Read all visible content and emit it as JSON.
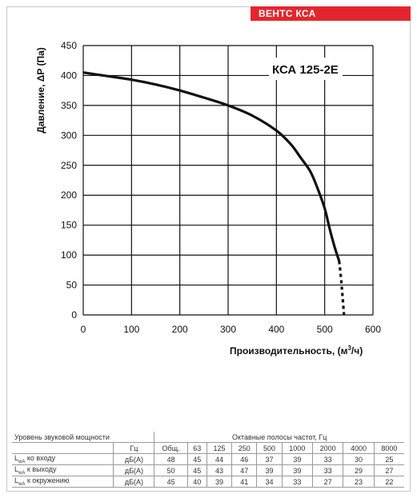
{
  "brand": "ВЕНТС КСА",
  "chart_data": {
    "type": "line",
    "title": "КСА 125-2Е",
    "xlabel": "Производительность, (м³/ч)",
    "ylabel": "Давление, ΔP (Па)",
    "xlim": [
      0,
      600
    ],
    "ylim": [
      0,
      450
    ],
    "xticks": [
      0,
      100,
      200,
      300,
      400,
      500,
      600
    ],
    "yticks": [
      0,
      50,
      100,
      150,
      200,
      250,
      300,
      350,
      400,
      450
    ],
    "grid": true,
    "series": [
      {
        "x": [
          0,
          50,
          100,
          150,
          200,
          250,
          300,
          350,
          400,
          430,
          450,
          470,
          485,
          500,
          510,
          520,
          530
        ],
        "y": [
          405,
          399,
          393,
          385,
          375,
          363,
          350,
          333,
          308,
          285,
          263,
          240,
          212,
          178,
          145,
          115,
          90
        ]
      },
      {
        "style": "dotted",
        "x": [
          530,
          534,
          537,
          540
        ],
        "y": [
          90,
          60,
          30,
          0
        ]
      }
    ]
  },
  "table": {
    "header_left": "Уровень звуковой мощности",
    "header_right": "Октавные полосы частот, Гц",
    "unit_header": "Гц",
    "columns": [
      "Общ.",
      "63",
      "125",
      "250",
      "500",
      "1000",
      "2000",
      "4000",
      "8000"
    ],
    "rows": [
      {
        "label_sub": "wA",
        "label_text": " ко входу",
        "unit": "дБ(А)",
        "values": [
          "48",
          "45",
          "44",
          "46",
          "37",
          "39",
          "33",
          "30",
          "25"
        ]
      },
      {
        "label_sub": "wA",
        "label_text": " к выходу",
        "unit": "дБ(А)",
        "values": [
          "50",
          "45",
          "43",
          "47",
          "39",
          "39",
          "33",
          "29",
          "27"
        ]
      },
      {
        "label_sub": "wA",
        "label_text": " к окружению",
        "unit": "дБ(А)",
        "values": [
          "45",
          "40",
          "39",
          "41",
          "34",
          "33",
          "27",
          "23",
          "22"
        ]
      }
    ]
  }
}
